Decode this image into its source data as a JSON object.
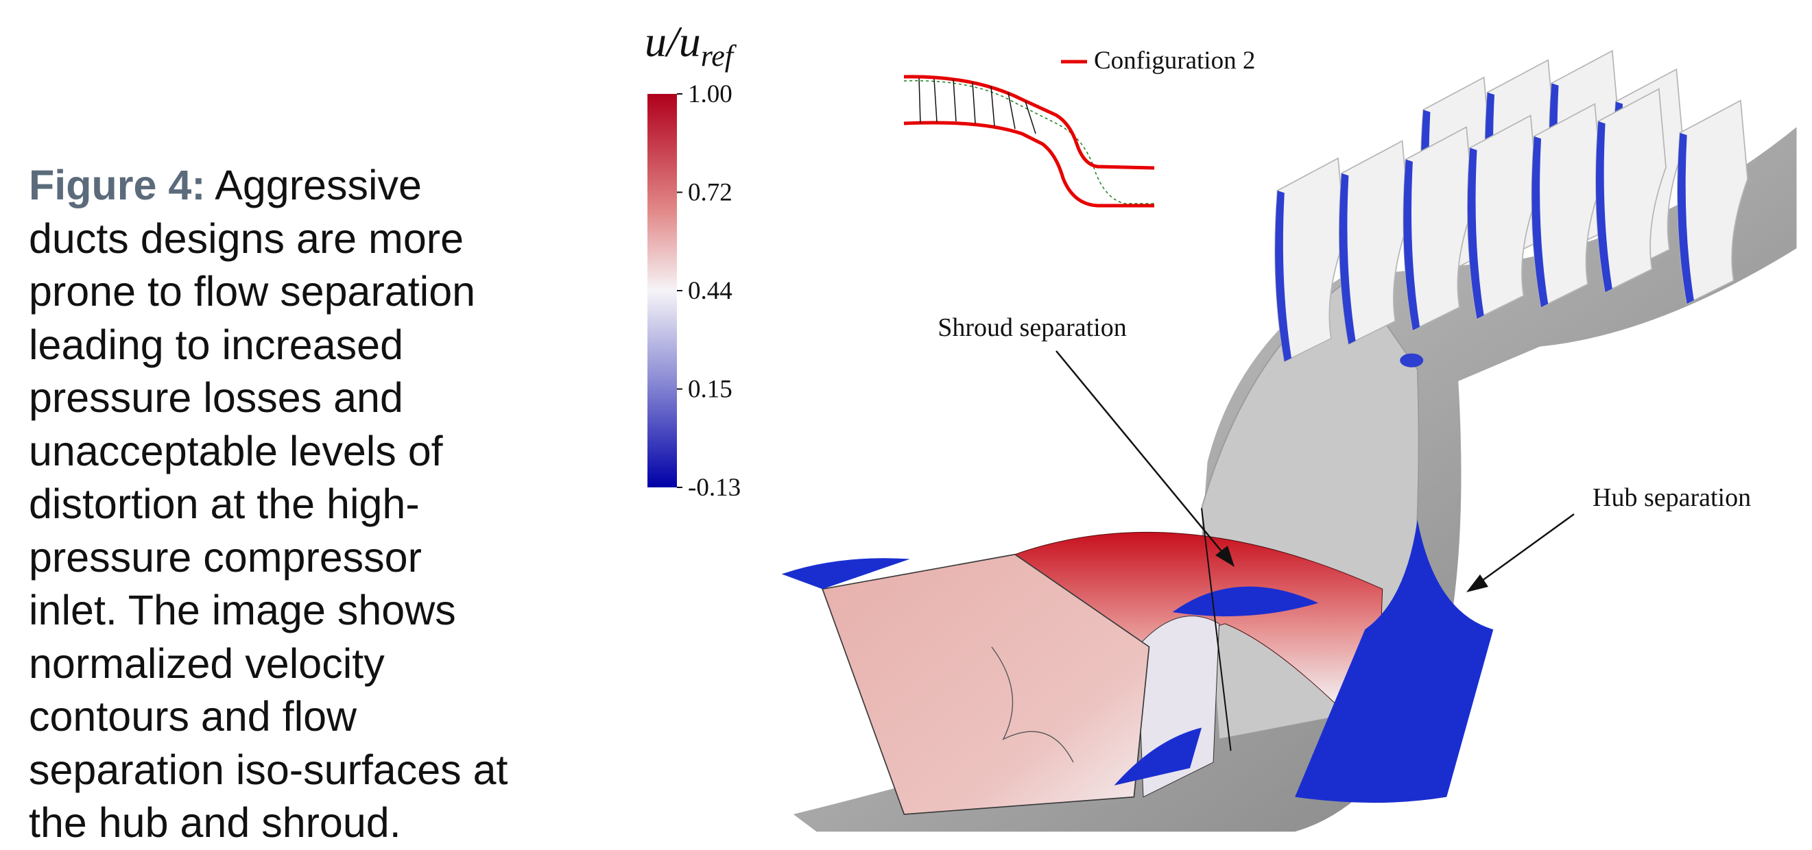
{
  "caption": {
    "label": "Figure 4:",
    "lines": [
      "Aggressive",
      "ducts designs are more",
      "prone to flow separation",
      "leading to increased",
      "pressure losses and",
      "unacceptable levels of",
      "distortion at the high-",
      "pressure compressor",
      "inlet. The image shows",
      "normalized velocity",
      "contours and flow",
      "separation iso-surfaces at",
      "the hub and shroud."
    ]
  },
  "colorbar": {
    "title": {
      "main": "u/u",
      "sub": "ref"
    },
    "tick_labels": [
      "1.00",
      "0.72",
      "0.44",
      "0.15",
      "-0.13"
    ]
  },
  "legend": {
    "label": "Configuration  2"
  },
  "annotations": {
    "shroud": "Shroud separation",
    "hub": "Hub separation"
  }
}
